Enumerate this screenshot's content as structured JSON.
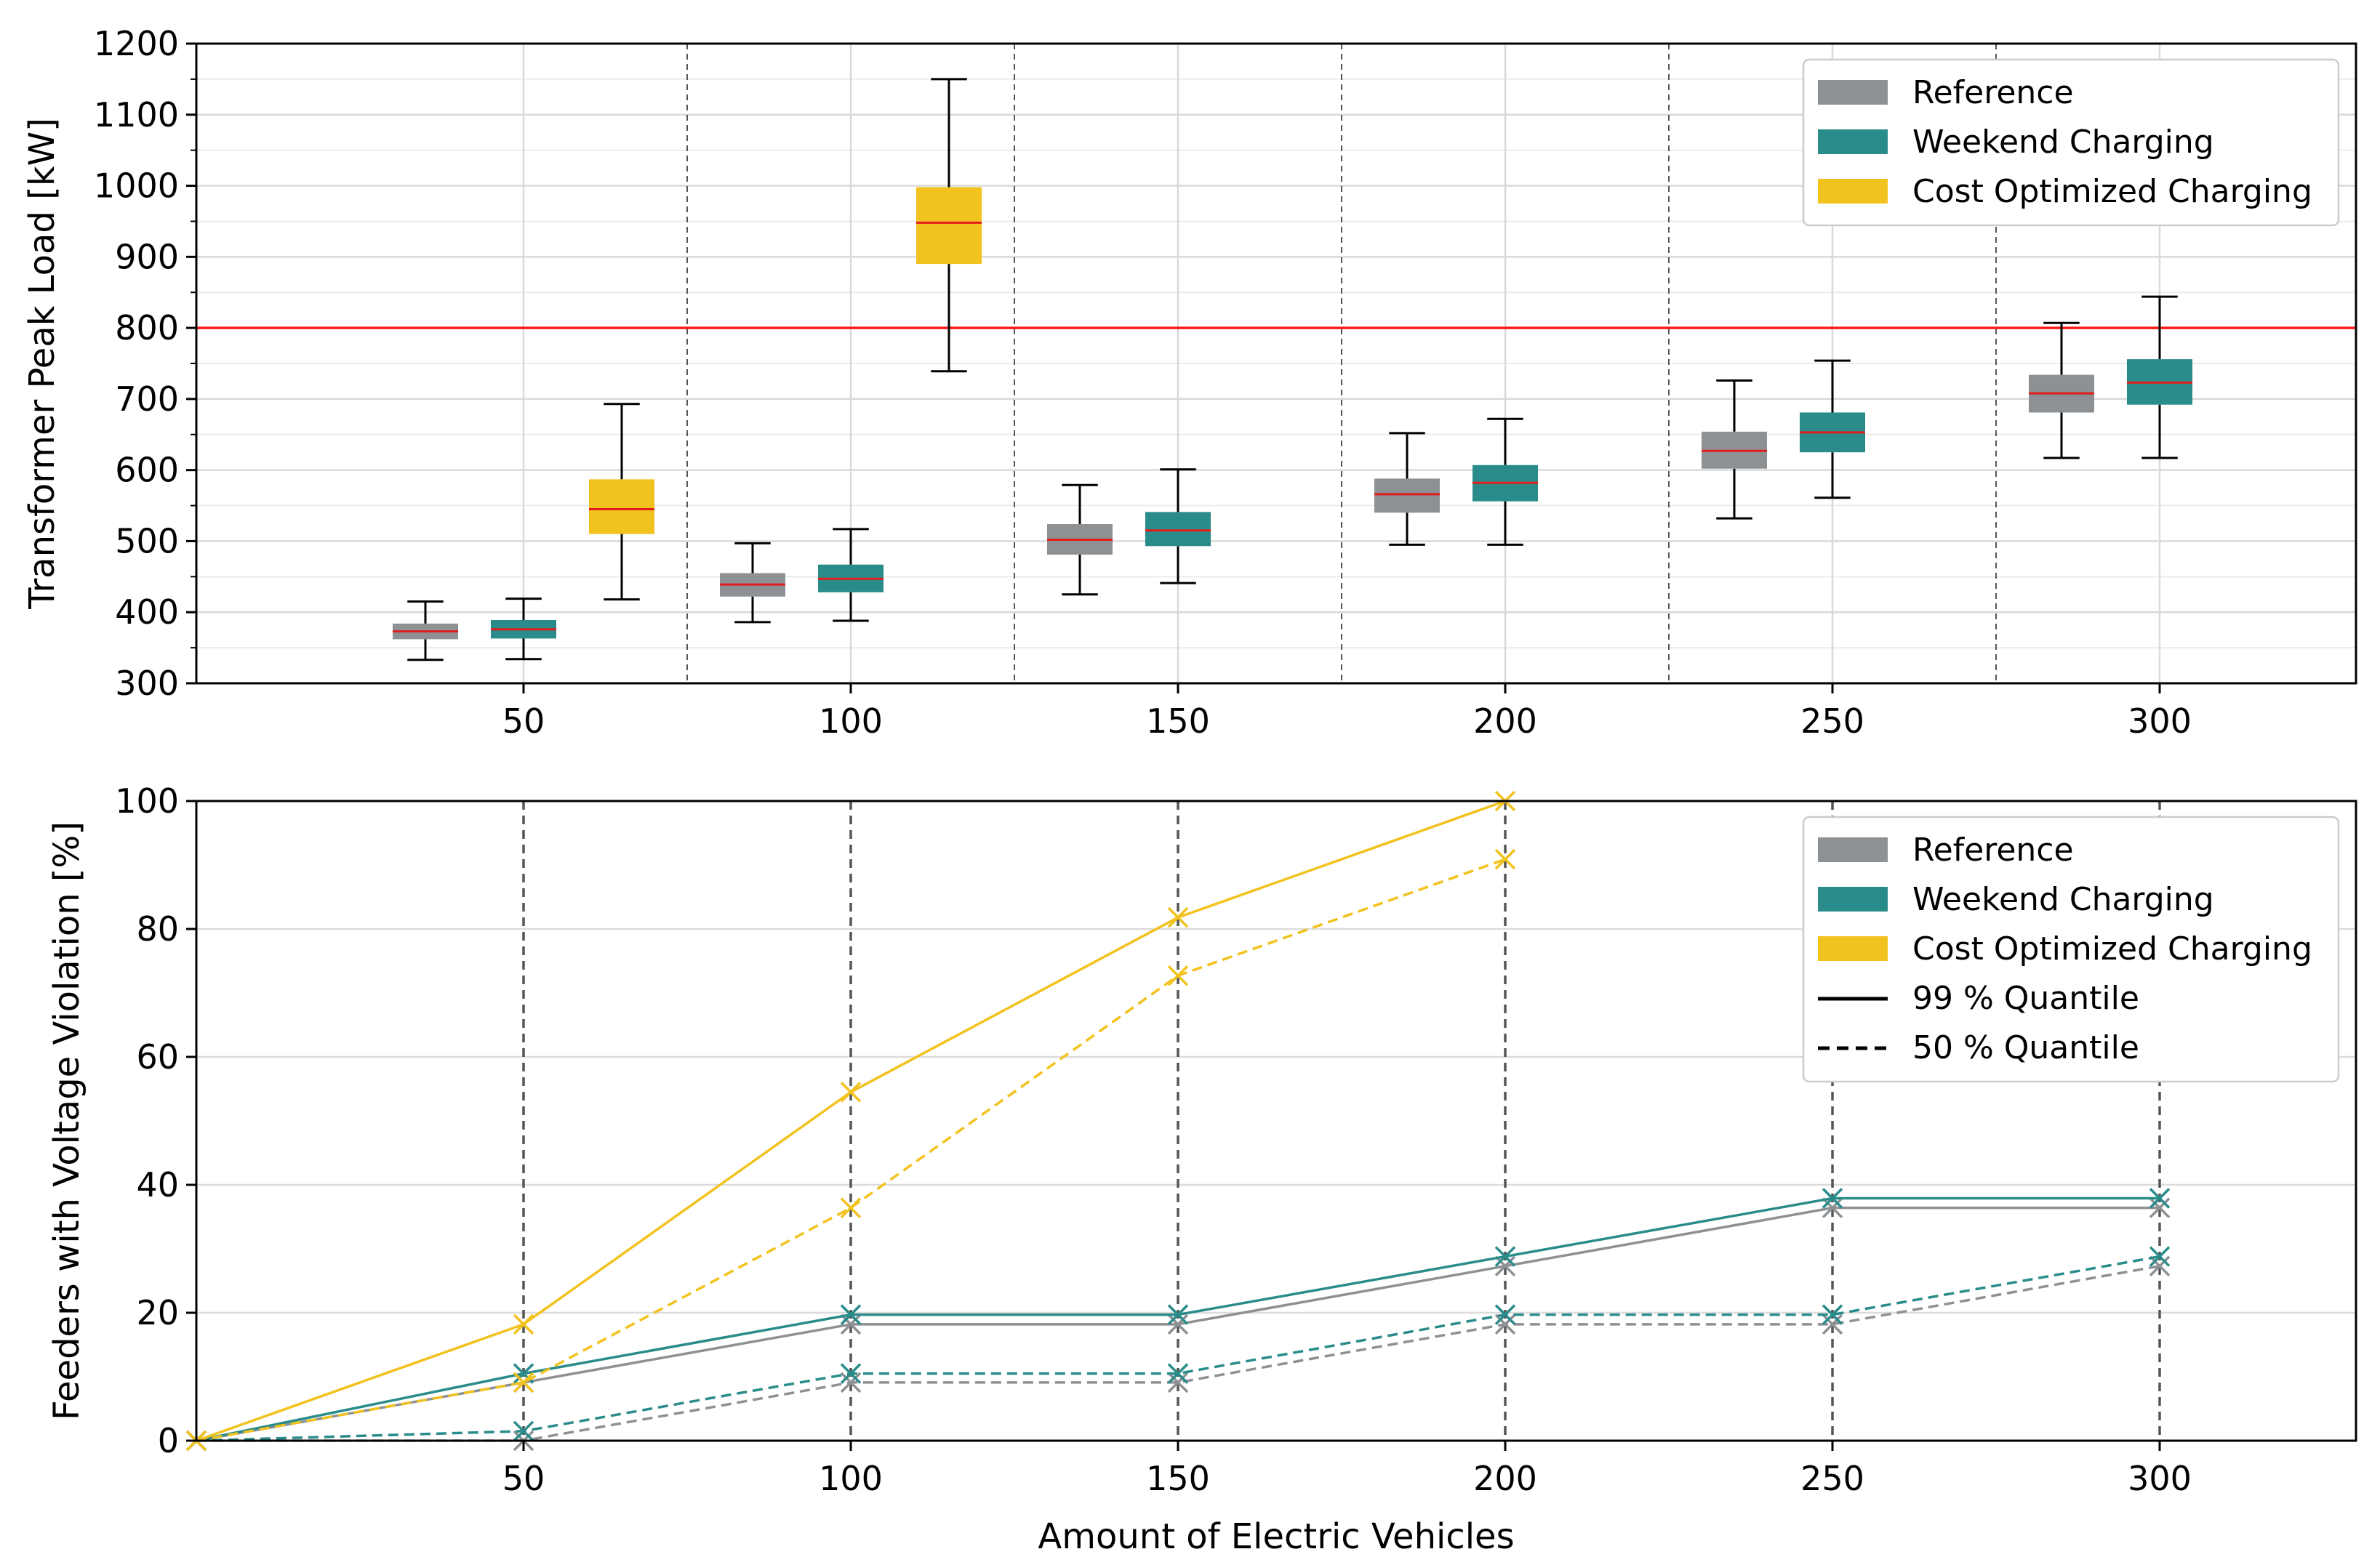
{
  "colors": {
    "reference": "#8e9194",
    "weekend": "#2a8c8a",
    "cost": "#f2c21e",
    "median": "#e21b1b",
    "threshold": "#ff1a1a"
  },
  "chart_data": [
    {
      "type": "box",
      "title": "",
      "xlabel": "",
      "ylabel": "Transformer Peak Load [kW]",
      "xlim": [
        0,
        330
      ],
      "ylim": [
        300,
        1200
      ],
      "x_ticks": [
        "50",
        "100",
        "150",
        "200",
        "250",
        "300"
      ],
      "y_ticks": [
        "300",
        "400",
        "500",
        "600",
        "700",
        "800",
        "900",
        "1000",
        "1100",
        "1200"
      ],
      "threshold": 800,
      "legend": {
        "position": "upper right",
        "entries": [
          "Reference",
          "Weekend Charging",
          "Cost Optimized Charging"
        ]
      },
      "groups": [
        50,
        100,
        150,
        200,
        250,
        300
      ],
      "series": [
        {
          "name": "Reference",
          "boxes": [
            {
              "ev": 50,
              "whisker_low": 333,
              "q1": 362,
              "median": 373,
              "q3": 384,
              "whisker_high": 415
            },
            {
              "ev": 100,
              "whisker_low": 386,
              "q1": 422,
              "median": 439,
              "q3": 455,
              "whisker_high": 497
            },
            {
              "ev": 150,
              "whisker_low": 425,
              "q1": 481,
              "median": 502,
              "q3": 524,
              "whisker_high": 579
            },
            {
              "ev": 200,
              "whisker_low": 495,
              "q1": 540,
              "median": 566,
              "q3": 588,
              "whisker_high": 652
            },
            {
              "ev": 250,
              "whisker_low": 532,
              "q1": 602,
              "median": 627,
              "q3": 654,
              "whisker_high": 726
            },
            {
              "ev": 300,
              "whisker_low": 617,
              "q1": 681,
              "median": 708,
              "q3": 734,
              "whisker_high": 807
            }
          ]
        },
        {
          "name": "Weekend Charging",
          "boxes": [
            {
              "ev": 50,
              "whisker_low": 334,
              "q1": 363,
              "median": 376,
              "q3": 389,
              "whisker_high": 419
            },
            {
              "ev": 100,
              "whisker_low": 388,
              "q1": 428,
              "median": 447,
              "q3": 467,
              "whisker_high": 517
            },
            {
              "ev": 150,
              "whisker_low": 441,
              "q1": 493,
              "median": 515,
              "q3": 541,
              "whisker_high": 601
            },
            {
              "ev": 200,
              "whisker_low": 495,
              "q1": 556,
              "median": 582,
              "q3": 607,
              "whisker_high": 672
            },
            {
              "ev": 250,
              "whisker_low": 561,
              "q1": 625,
              "median": 653,
              "q3": 681,
              "whisker_high": 754
            },
            {
              "ev": 300,
              "whisker_low": 617,
              "q1": 692,
              "median": 723,
              "q3": 756,
              "whisker_high": 844
            }
          ]
        },
        {
          "name": "Cost Optimized Charging",
          "boxes": [
            {
              "ev": 50,
              "whisker_low": 418,
              "q1": 510,
              "median": 545,
              "q3": 587,
              "whisker_high": 693
            },
            {
              "ev": 100,
              "whisker_low": 739,
              "q1": 890,
              "median": 948,
              "q3": 998,
              "whisker_high": 1150
            }
          ]
        }
      ]
    },
    {
      "type": "line",
      "title": "",
      "xlabel": "Amount of Electric Vehicles",
      "ylabel": "Feeders with Voltage Violation [%]",
      "xlim": [
        0,
        330
      ],
      "ylim": [
        0,
        100
      ],
      "x_ticks": [
        "50",
        "100",
        "150",
        "200",
        "250",
        "300"
      ],
      "y_ticks": [
        "0",
        "20",
        "40",
        "60",
        "80",
        "100"
      ],
      "legend": {
        "position": "upper right",
        "entries": [
          "Reference",
          "Weekend Charging",
          "Cost Optimized Charging",
          "99 % Quantile",
          "50 % Quantile"
        ]
      },
      "series": [
        {
          "name": "Reference",
          "quantile": "99 % Quantile",
          "x": [
            0,
            50,
            100,
            150,
            200,
            250,
            300
          ],
          "y": [
            0,
            9.1,
            18.2,
            18.2,
            27.3,
            36.4,
            36.4
          ]
        },
        {
          "name": "Weekend Charging",
          "quantile": "99 % Quantile",
          "x": [
            0,
            50,
            100,
            150,
            200,
            250,
            300
          ],
          "y": [
            0,
            10.5,
            19.7,
            19.7,
            28.8,
            37.9,
            37.9
          ]
        },
        {
          "name": "Cost Optimized Charging",
          "quantile": "99 % Quantile",
          "x": [
            0,
            50,
            100,
            150,
            200
          ],
          "y": [
            0,
            18.2,
            54.5,
            81.8,
            100
          ]
        },
        {
          "name": "Reference",
          "quantile": "50 % Quantile",
          "x": [
            0,
            50,
            100,
            150,
            200,
            250,
            300
          ],
          "y": [
            0,
            0,
            9.1,
            9.1,
            18.2,
            18.2,
            27.3
          ]
        },
        {
          "name": "Weekend Charging",
          "quantile": "50 % Quantile",
          "x": [
            0,
            50,
            100,
            150,
            200,
            250,
            300
          ],
          "y": [
            0,
            1.5,
            10.5,
            10.5,
            19.7,
            19.7,
            28.8
          ]
        },
        {
          "name": "Cost Optimized Charging",
          "quantile": "50 % Quantile",
          "x": [
            0,
            50,
            100,
            150,
            200
          ],
          "y": [
            0,
            9.1,
            36.4,
            72.7,
            90.9
          ]
        }
      ]
    }
  ]
}
